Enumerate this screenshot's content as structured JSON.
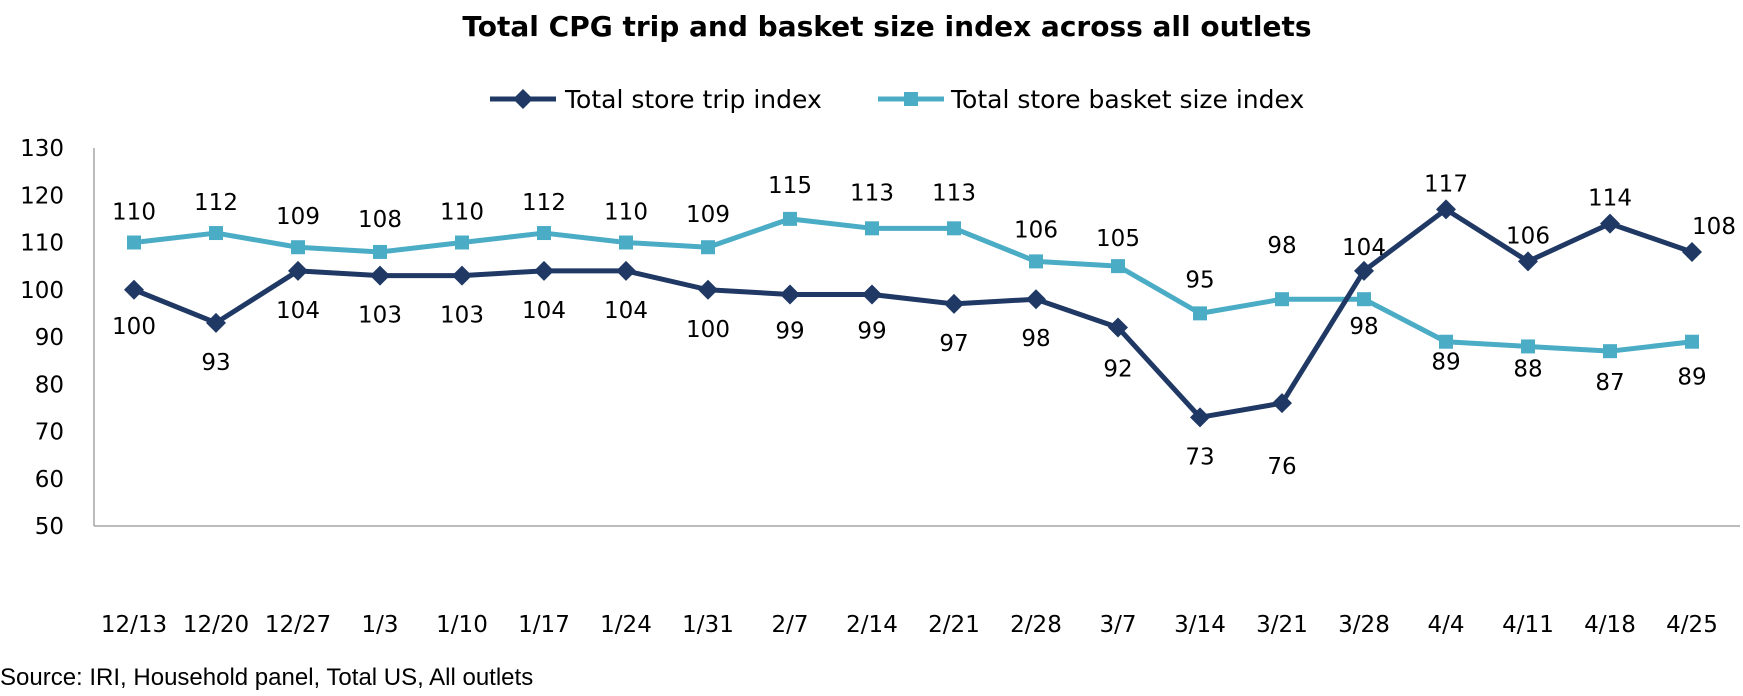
{
  "chart_data": {
    "type": "line",
    "title": "Total CPG trip and basket size index across all outlets",
    "xlabel": "",
    "ylabel": "",
    "categories": [
      "12/13",
      "12/20",
      "12/27",
      "1/3",
      "1/10",
      "1/17",
      "1/24",
      "1/31",
      "2/7",
      "2/14",
      "2/21",
      "2/28",
      "3/7",
      "3/14",
      "3/21",
      "3/28",
      "4/4",
      "4/11",
      "4/18",
      "4/25"
    ],
    "ylim": [
      50,
      130
    ],
    "yticks": [
      50,
      60,
      70,
      80,
      90,
      100,
      110,
      120,
      130
    ],
    "grid": false,
    "legend_position": "top-center",
    "series": [
      {
        "name": "Total store trip index",
        "color": "#1f3864",
        "marker": "diamond",
        "values": [
          100,
          93,
          104,
          103,
          103,
          104,
          104,
          100,
          99,
          99,
          97,
          98,
          92,
          73,
          76,
          104,
          117,
          106,
          114,
          108
        ]
      },
      {
        "name": "Total store basket size index",
        "color": "#4bacc6",
        "marker": "square",
        "values": [
          110,
          112,
          109,
          108,
          110,
          112,
          110,
          109,
          115,
          113,
          113,
          106,
          105,
          95,
          98,
          98,
          89,
          88,
          87,
          89
        ]
      }
    ]
  },
  "footer": {
    "source": "Source: IRI, Household panel, Total US, All outlets"
  }
}
